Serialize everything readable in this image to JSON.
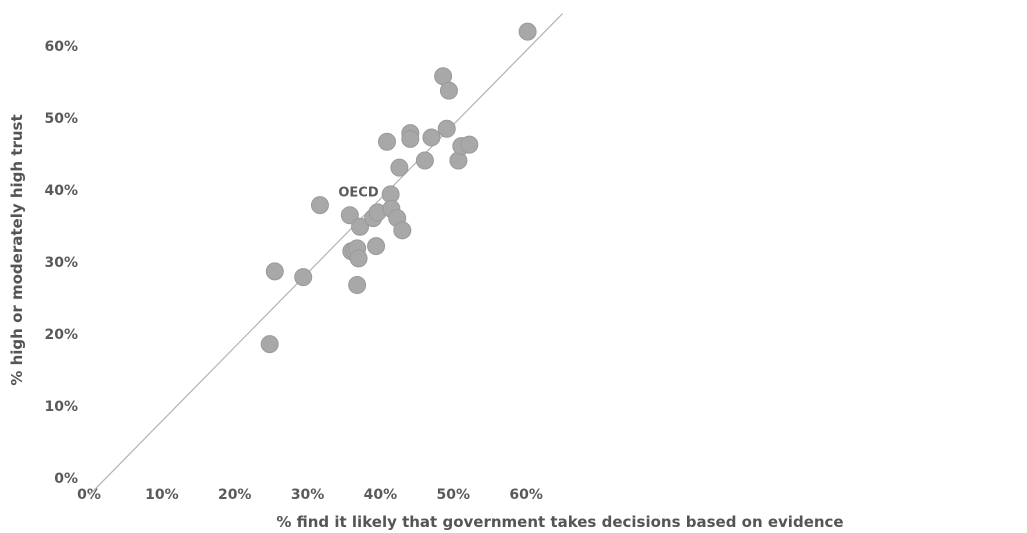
{
  "chart_data": {
    "type": "scatter",
    "title": "",
    "xlabel": "% find it likely that government takes decisions based on evidence",
    "ylabel": "% high or moderately high trust",
    "xlim": [
      0,
      65
    ],
    "ylim": [
      0,
      65
    ],
    "x_ticks": [
      0,
      10,
      20,
      30,
      40,
      50,
      60
    ],
    "x_tick_labels": [
      "0%",
      "10%",
      "20%",
      "30%",
      "40%",
      "50%",
      "60%"
    ],
    "y_ticks": [
      0,
      10,
      20,
      30,
      40,
      50,
      60
    ],
    "y_tick_labels": [
      "0%",
      "10%",
      "20%",
      "30%",
      "40%",
      "50%",
      "60%"
    ],
    "grid": false,
    "legend": "none",
    "point_color": "#a8a8a8",
    "trendline_color": "#b3b3b3",
    "trendline": {
      "x": [
        0,
        65
      ],
      "y": [
        -2.4,
        64.5
      ]
    },
    "annotations": [
      {
        "text": "OECD",
        "x": 41.4,
        "y": 39.4
      }
    ],
    "points": [
      {
        "x": 24.8,
        "y": 18.6
      },
      {
        "x": 25.5,
        "y": 28.7
      },
      {
        "x": 29.4,
        "y": 27.9
      },
      {
        "x": 31.7,
        "y": 37.9
      },
      {
        "x": 35.8,
        "y": 36.5
      },
      {
        "x": 36.0,
        "y": 31.5
      },
      {
        "x": 36.4,
        "y": 31.6
      },
      {
        "x": 36.8,
        "y": 31.9
      },
      {
        "x": 37.0,
        "y": 30.5
      },
      {
        "x": 36.8,
        "y": 26.8
      },
      {
        "x": 37.2,
        "y": 34.9
      },
      {
        "x": 39.0,
        "y": 36.1
      },
      {
        "x": 39.6,
        "y": 36.9
      },
      {
        "x": 39.4,
        "y": 32.2
      },
      {
        "x": 40.9,
        "y": 46.7
      },
      {
        "x": 41.4,
        "y": 39.4
      },
      {
        "x": 41.5,
        "y": 37.4
      },
      {
        "x": 42.3,
        "y": 36.1
      },
      {
        "x": 42.6,
        "y": 43.1
      },
      {
        "x": 43.0,
        "y": 34.4
      },
      {
        "x": 44.1,
        "y": 47.9
      },
      {
        "x": 44.1,
        "y": 47.1
      },
      {
        "x": 46.1,
        "y": 44.1
      },
      {
        "x": 47.0,
        "y": 47.3
      },
      {
        "x": 48.6,
        "y": 55.8
      },
      {
        "x": 49.1,
        "y": 48.5
      },
      {
        "x": 49.4,
        "y": 53.8
      },
      {
        "x": 50.7,
        "y": 44.1
      },
      {
        "x": 51.1,
        "y": 46.1
      },
      {
        "x": 52.2,
        "y": 46.3
      },
      {
        "x": 60.2,
        "y": 62.0
      }
    ]
  }
}
